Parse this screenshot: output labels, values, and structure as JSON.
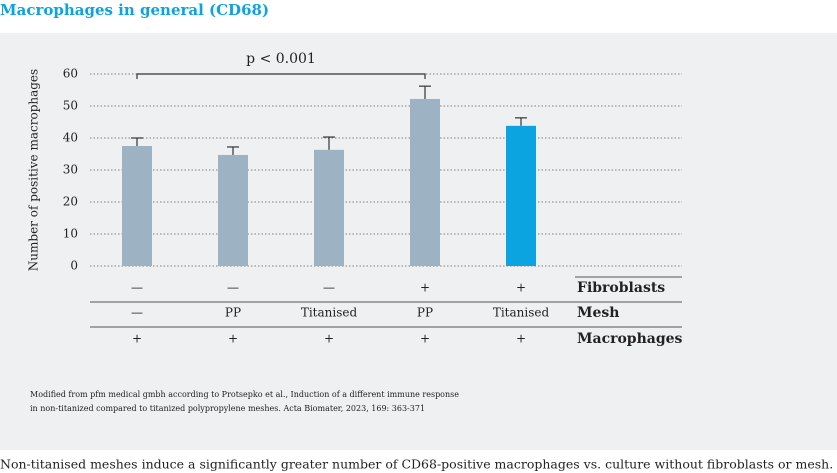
{
  "chart_data": {
    "type": "bar",
    "title": "Macrophages in general (CD68)",
    "y_label": "Number of positive macrophages",
    "values": [
      37.5,
      34.7,
      36.3,
      52.2,
      43.8
    ],
    "errors": [
      2.5,
      2.5,
      4,
      4,
      2.5
    ],
    "colors": [
      "#9db3c3",
      "#9db3c3",
      "#9db3c3",
      "#9db3c3",
      "#0ca3e1"
    ],
    "ylim": [
      0,
      60
    ],
    "yticks": [
      0,
      10,
      20,
      30,
      40,
      50,
      60
    ],
    "grid": true,
    "annotation": {
      "text": "p < 0.001",
      "from": 0,
      "to": 3
    },
    "table": [
      {
        "label": "Fibroblasts",
        "cells": [
          "—",
          "—",
          "—",
          "+",
          "+"
        ]
      },
      {
        "label": "Mesh",
        "cells": [
          "—",
          "PP",
          "Titanised",
          "PP",
          "Titanised"
        ]
      },
      {
        "label": "Macrophages",
        "cells": [
          "+",
          "+",
          "+",
          "+",
          "+"
        ]
      }
    ],
    "source": [
      "Modified from pfm medical gmbh according to Protsepko et al., Induction of a different immune response",
      "in non-titanized compared to titanized polypropylene meshes. Acta Biomater, 2023, 169: 363-371"
    ]
  },
  "caption": "Non-titanised meshes induce a significantly greater number of CD68-positive macrophages vs. culture without fibroblasts or mesh."
}
